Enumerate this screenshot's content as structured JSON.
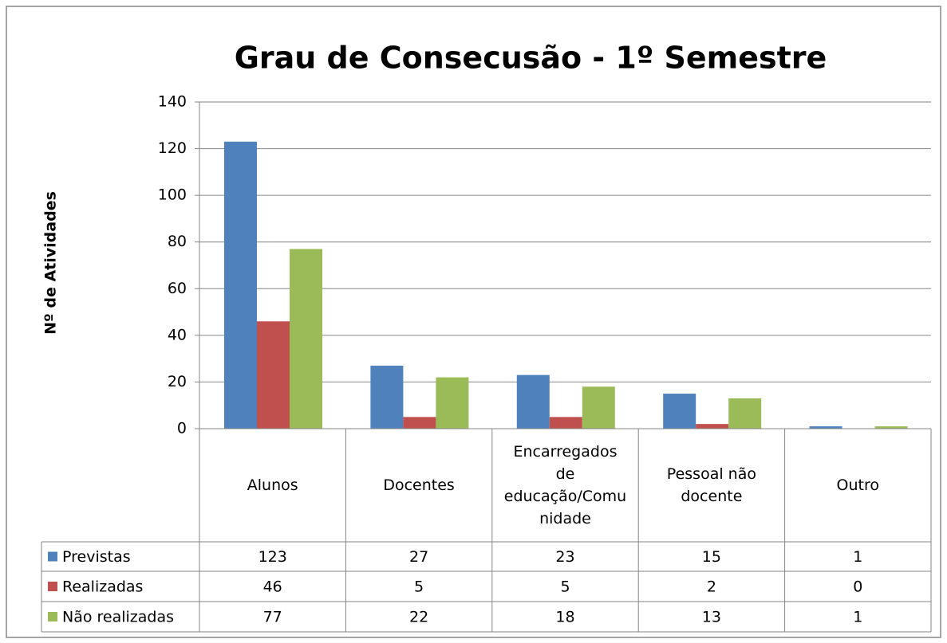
{
  "chart_data": {
    "type": "bar",
    "title": "Grau de Consecusão - 1º Semestre",
    "ylabel": "Nº de Atividades",
    "categories": [
      "Alunos",
      "Docentes",
      "Encarregados de educação/Comunidade",
      "Pessoal não docente",
      "Outro"
    ],
    "series": [
      {
        "name": "Previstas",
        "color": "#4f81bd",
        "values": [
          123,
          27,
          23,
          15,
          1
        ]
      },
      {
        "name": "Realizadas",
        "color": "#c0504d",
        "values": [
          46,
          5,
          5,
          2,
          0
        ]
      },
      {
        "name": "Não realizadas",
        "color": "#9bbb59",
        "values": [
          77,
          22,
          18,
          13,
          1
        ]
      }
    ],
    "ylim": [
      0,
      140
    ],
    "yticks": [
      0,
      20,
      40,
      60,
      80,
      100,
      120,
      140
    ],
    "grid": true
  }
}
